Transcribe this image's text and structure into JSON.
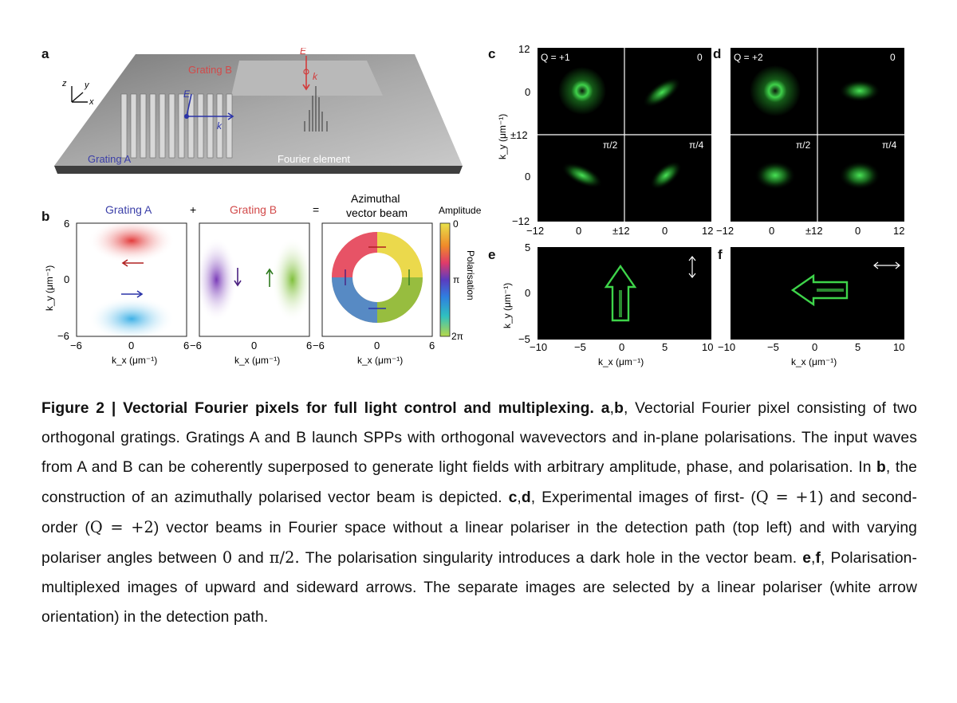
{
  "panels": {
    "a": {
      "label": "a",
      "axes": {
        "z": "z",
        "y": "y",
        "x": "x"
      },
      "grating_a": "Grating A",
      "grating_b": "Grating B",
      "fourier_element": "Fourier element",
      "e_label": "E",
      "k_label": "k"
    },
    "b": {
      "label": "b",
      "title_a": "Grating A",
      "plus": "+",
      "title_b": "Grating B",
      "equals": "=",
      "title_c_line1": "Azimuthal",
      "title_c_line2": "vector beam",
      "ylabel": "k_y (μm⁻¹)",
      "xlabel": "k_x (μm⁻¹)",
      "yticks": [
        "6",
        "0",
        "−6"
      ],
      "xticks_1": [
        "−6",
        "0",
        "6"
      ],
      "xticks_2": [
        "−6",
        "0",
        "6"
      ],
      "xticks_3": [
        "−6",
        "0",
        "6"
      ],
      "colorbar": {
        "amplitude": "Amplitude",
        "top": "0",
        "mid": "π",
        "bottom": "2π",
        "polarisation": "Polarisation"
      }
    },
    "c": {
      "label": "c",
      "q": "Q = +1",
      "quad_labels": [
        "0",
        "π/2",
        "π/4"
      ],
      "yticks": [
        "12",
        "0",
        "±12",
        "0",
        "−12"
      ],
      "xticks": [
        "−12",
        "0",
        "±12",
        "0",
        "12"
      ],
      "ylabel": "k_y (μm⁻¹)"
    },
    "d": {
      "label": "d",
      "q": "Q = +2",
      "quad_labels": [
        "0",
        "π/2",
        "π/4"
      ],
      "xticks": [
        "−12",
        "0",
        "±12",
        "0",
        "12"
      ]
    },
    "e": {
      "label": "e",
      "yticks": [
        "5",
        "0",
        "−5"
      ],
      "xticks": [
        "−10",
        "−5",
        "0",
        "5",
        "10"
      ],
      "ylabel": "k_y (μm⁻¹)",
      "xlabel": "k_x (μm⁻¹)"
    },
    "f": {
      "label": "f",
      "xticks": [
        "−10",
        "−5",
        "0",
        "5",
        "10"
      ],
      "xlabel": "k_x (μm⁻¹)"
    }
  },
  "caption": {
    "fig": "Figure 2 | Vectorial Fourier pixels for full light control and multiplexing.",
    "ab": "a",
    "ab2": "b",
    "t1": ", Vectorial Fourier pixel consisting of two orthogonal gratings. Gratings A and B launch SPPs with orthogonal wavevectors and in-plane polarisations. The input waves from A and B can be coherently superposed to generate light fields with arbitrary amplitude, phase, and polarisation. In ",
    "b_ref": "b",
    "t2": ", the construction of an azimuthally polarised vector beam is depicted. ",
    "cd1": "c",
    "cd2": "d",
    "t3": ", Experimental images of first- (",
    "q1": "Q = +1",
    "t4": ") and second-order (",
    "q2": "Q = +2",
    "t5": ") vector beams in Fourier space without a linear polariser in the detection path (top left) and with varying polariser angles between ",
    "zero": "0",
    "t6": " and ",
    "pi2": "π/2.",
    "t7": " The polarisation singularity introduces a dark hole in the vector beam. ",
    "ef1": "e",
    "ef2": "f",
    "t8": ", Polarisation-multiplexed images of upward and sideward arrows. The separate images are selected by a linear polariser (white arrow orientation) in the detection path."
  },
  "colors": {
    "grating_a": "#3b3fa8",
    "grating_b": "#d24a4a",
    "green": "#3be04a"
  }
}
